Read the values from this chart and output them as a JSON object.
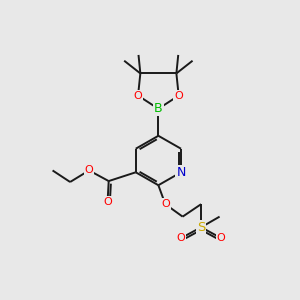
{
  "bg_color": "#e8e8e8",
  "bond_color": "#1a1a1a",
  "bond_width": 1.4,
  "atom_colors": {
    "O": "#ff0000",
    "N": "#0000cc",
    "B": "#00bb00",
    "S": "#ccaa00"
  },
  "font_size": 8.0
}
